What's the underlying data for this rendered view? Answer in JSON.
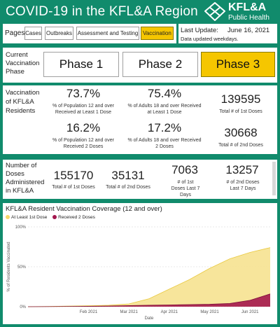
{
  "header": {
    "title": "COVID-19 in the KFL&A Region",
    "logo_line1": "KFL&A",
    "logo_line2": "Public Health"
  },
  "nav": {
    "label": "Pages",
    "buttons": [
      "Cases",
      "Outbreaks",
      "Assessment and Testing",
      "Vaccination"
    ],
    "active": "Vaccination"
  },
  "update": {
    "label": "Last Update:",
    "date": "June 16, 2021",
    "note": "Data updated weekdays."
  },
  "phases": {
    "label": "Current Vaccination Phase",
    "items": [
      "Phase 1",
      "Phase 2",
      "Phase 3"
    ],
    "active": "Phase 3"
  },
  "vaccination": {
    "label": "Vaccination of KFL&A Residents",
    "stats": [
      {
        "value": "73.7%",
        "caption": "% of Population 12 and over Received at Least 1 Dose"
      },
      {
        "value": "75.4%",
        "caption": "% of Adults 18 and over Received at Least 1 Dose"
      },
      {
        "value": "139595",
        "caption": "Total # of 1st Doses"
      },
      {
        "value": "16.2%",
        "caption": "% of Population 12 and over Received 2 Doses"
      },
      {
        "value": "17.2%",
        "caption": "% of Adults 18 and over Received 2 Doses"
      },
      {
        "value": "30668",
        "caption": "Total # of 2nd Doses"
      }
    ]
  },
  "doses": {
    "label": "Number of Doses Administered in KFL&A",
    "stats": [
      {
        "value": "155170",
        "caption": "Total # of 1st Doses"
      },
      {
        "value": "35131",
        "caption": "Total # of 2nd Doses"
      },
      {
        "value": "7063",
        "caption": "# of 1st Doses Last 7 Days"
      },
      {
        "value": "13257",
        "caption": "# of 2nd Doses Last 7 Days"
      }
    ]
  },
  "chart_data": {
    "type": "area",
    "title": "KFL&A Resident Vaccination Coverage (12 and over)",
    "xlabel": "Date",
    "ylabel": "% of Residents Vaccinated",
    "ylim": [
      0,
      100
    ],
    "yticks": [
      "0%",
      "50%",
      "100%"
    ],
    "xticks": [
      "Feb 2021",
      "Mar 2021",
      "Apr 2021",
      "May 2021",
      "Jun 2021"
    ],
    "x": [
      "Dec 15",
      "Jan 1",
      "Jan 15",
      "Feb 1",
      "Feb 15",
      "Mar 1",
      "Mar 15",
      "Apr 1",
      "Apr 15",
      "May 1",
      "May 15",
      "Jun 1",
      "Jun 15"
    ],
    "series": [
      {
        "name": "At Least 1st Dose",
        "color": "#f6e08a",
        "values": [
          0,
          0.3,
          0.8,
          1.2,
          1.8,
          3.5,
          10,
          22,
          34,
          48,
          60,
          68,
          74
        ]
      },
      {
        "name": "Received 2 Doses",
        "color": "#a3174e",
        "values": [
          0,
          0.1,
          0.3,
          0.5,
          0.9,
          1.4,
          1.8,
          2.2,
          2.6,
          3.0,
          4.0,
          8.0,
          16
        ]
      }
    ],
    "grid": true,
    "legend": "top-left"
  }
}
